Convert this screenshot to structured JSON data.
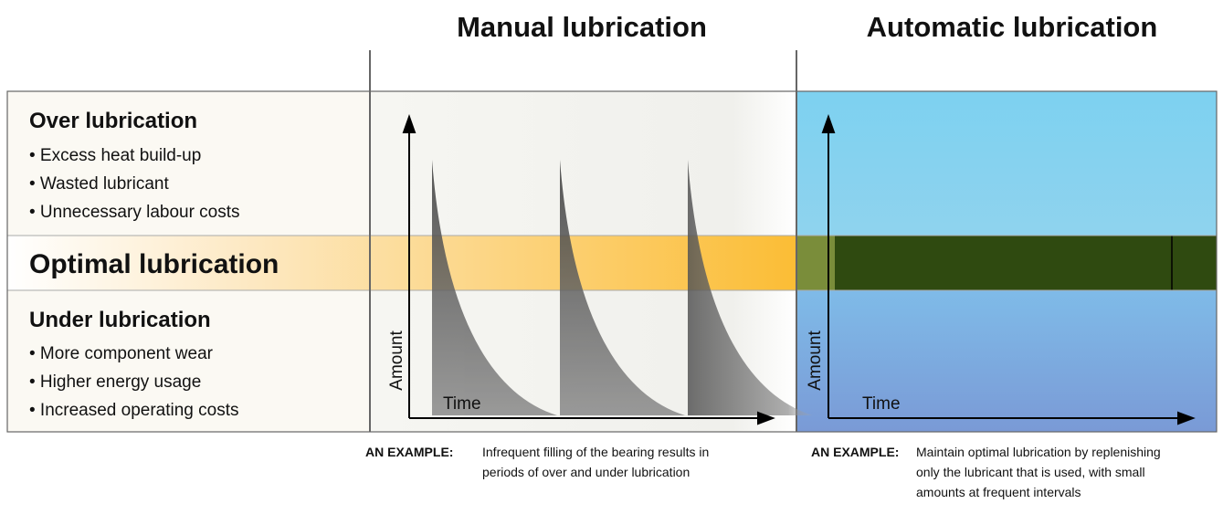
{
  "headers": {
    "manual": "Manual lubrication",
    "automatic": "Automatic lubrication"
  },
  "rows": {
    "over": {
      "title": "Over lubrication",
      "bullets": [
        "• Excess heat build-up",
        "• Wasted lubricant",
        "• Unnecessary labour costs"
      ]
    },
    "optimal": {
      "title": "Optimal lubrication"
    },
    "under": {
      "title": "Under lubrication",
      "bullets": [
        "• More component wear",
        "• Higher energy usage",
        "• Increased operating costs"
      ]
    }
  },
  "charts": {
    "manual": {
      "y_label": "Amount",
      "x_label": "Time"
    },
    "automatic": {
      "y_label": "Amount",
      "x_label": "Time"
    }
  },
  "examples": [
    {
      "label": "AN EXAMPLE:",
      "lines": [
        "Infrequent filling of the bearing results in",
        "periods of over and under lubrication"
      ]
    },
    {
      "label": "AN EXAMPLE:",
      "lines": [
        "Maintain optimal lubrication by replenishing",
        "only the lubricant that is used, with small",
        "amounts at frequent intervals"
      ]
    }
  ]
}
